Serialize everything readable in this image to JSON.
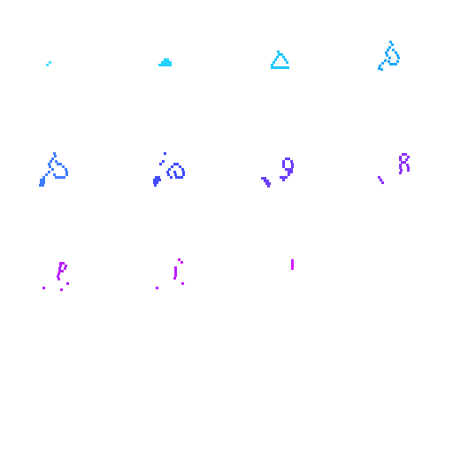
{
  "sprite_sheet": {
    "grid": {
      "columns": 4,
      "rows": 4
    },
    "frame_count": 11,
    "frames": [
      {
        "index": 1,
        "color": "#3fe0ff",
        "glyph": "spark-dot"
      },
      {
        "index": 2,
        "color": "#22d3ff",
        "glyph": "small-triangle"
      },
      {
        "index": 3,
        "color": "#1ec8ff",
        "glyph": "triangle-outline"
      },
      {
        "index": 4,
        "color": "#1fa8ff",
        "glyph": "curl-hook"
      },
      {
        "index": 5,
        "color": "#3f7dff",
        "glyph": "curl-loop"
      },
      {
        "index": 6,
        "color": "#3f4cff",
        "glyph": "loop-with-tail"
      },
      {
        "index": 7,
        "color": "#6a3cff",
        "glyph": "loop-drop"
      },
      {
        "index": 8,
        "color": "#8c2cff",
        "glyph": "loop-drop-small"
      },
      {
        "index": 9,
        "color": "#b521ff",
        "glyph": "scattered-sparks"
      },
      {
        "index": 10,
        "color": "#c41cff",
        "glyph": "fading-sparks"
      },
      {
        "index": 11,
        "color": "#d41aff",
        "glyph": "final-spark"
      }
    ]
  }
}
